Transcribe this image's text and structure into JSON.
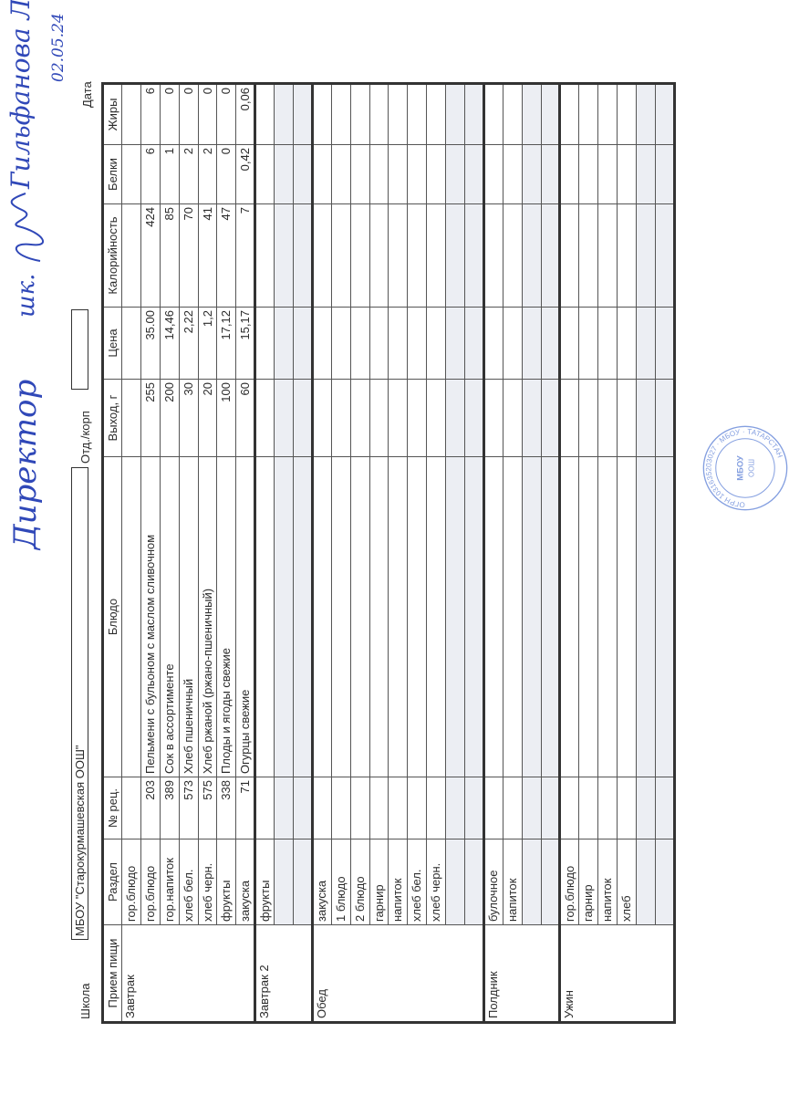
{
  "header": {
    "school_label": "Школа",
    "school_value": "МБОУ \"Старокурмашевская ООШ\"",
    "dept_label": "Отд./корп",
    "dept_value": "",
    "date_label": "Дата",
    "date_value": "02.05.24"
  },
  "columns": [
    "Прием пищи",
    "Раздел",
    "№ рец.",
    "Блюдо",
    "Выход, г",
    "Цена",
    "Калорийность",
    "Белки",
    "Жиры"
  ],
  "meals": [
    {
      "name": "Завтрак",
      "rows": [
        [
          "гор.блюдо",
          "",
          "",
          "",
          "",
          "",
          "",
          ""
        ],
        [
          "гор.блюдо",
          "203",
          "Пельмени с бульоном с маслом сливочном",
          "255",
          "35.00",
          "424",
          "6",
          "6"
        ],
        [
          "гор.напиток",
          "389",
          "Сок в ассортименте",
          "200",
          "14,46",
          "85",
          "1",
          "0"
        ],
        [
          "хлеб бел.",
          "573",
          "Хлеб пшеничный",
          "30",
          "2,22",
          "70",
          "2",
          "0"
        ],
        [
          "хлеб черн.",
          "575",
          "Хлеб ржаной (ржано-пшеничный)",
          "20",
          "1,2",
          "41",
          "2",
          "0"
        ],
        [
          "фрукты",
          "338",
          "Плоды и ягоды свежие",
          "100",
          "17,12",
          "47",
          "0",
          "0"
        ],
        [
          "закуска",
          "71",
          "Огурцы свежие",
          "60",
          "15,17",
          "7",
          "0,42",
          "0,06"
        ]
      ]
    },
    {
      "name": "Завтрак 2",
      "rows": [
        [
          "фрукты",
          "",
          "",
          "",
          "",
          "",
          "",
          ""
        ],
        [
          "",
          "",
          "",
          "",
          "",
          "",
          "",
          ""
        ],
        [
          "",
          "",
          "",
          "",
          "",
          "",
          "",
          ""
        ]
      ]
    },
    {
      "name": "Обед",
      "rows": [
        [
          "закуска",
          "",
          "",
          "",
          "",
          "",
          "",
          ""
        ],
        [
          "1 блюдо",
          "",
          "",
          "",
          "",
          "",
          "",
          ""
        ],
        [
          "2 блюдо",
          "",
          "",
          "",
          "",
          "",
          "",
          ""
        ],
        [
          "гарнир",
          "",
          "",
          "",
          "",
          "",
          "",
          ""
        ],
        [
          "напиток",
          "",
          "",
          "",
          "",
          "",
          "",
          ""
        ],
        [
          "хлеб бел.",
          "",
          "",
          "",
          "",
          "",
          "",
          ""
        ],
        [
          "хлеб черн.",
          "",
          "",
          "",
          "",
          "",
          "",
          ""
        ],
        [
          "",
          "",
          "",
          "",
          "",
          "",
          "",
          ""
        ],
        [
          "",
          "",
          "",
          "",
          "",
          "",
          "",
          ""
        ]
      ]
    },
    {
      "name": "Полдник",
      "rows": [
        [
          "булочное",
          "",
          "",
          "",
          "",
          "",
          "",
          ""
        ],
        [
          "напиток",
          "",
          "",
          "",
          "",
          "",
          "",
          ""
        ],
        [
          "",
          "",
          "",
          "",
          "",
          "",
          "",
          ""
        ],
        [
          "",
          "",
          "",
          "",
          "",
          "",
          "",
          ""
        ]
      ]
    },
    {
      "name": "Ужин",
      "rows": [
        [
          "гор.блюдо",
          "",
          "",
          "",
          "",
          "",
          "",
          ""
        ],
        [
          "гарнир",
          "",
          "",
          "",
          "",
          "",
          "",
          ""
        ],
        [
          "напиток",
          "",
          "",
          "",
          "",
          "",
          "",
          ""
        ],
        [
          "хлеб",
          "",
          "",
          "",
          "",
          "",
          "",
          ""
        ],
        [
          "",
          "",
          "",
          "",
          "",
          "",
          "",
          ""
        ],
        [
          "",
          "",
          "",
          "",
          "",
          "",
          "",
          ""
        ]
      ]
    }
  ],
  "approval": {
    "position": "Директор",
    "position2": "шк.",
    "name": "Гильфанова Л.А."
  },
  "stamp": {
    "center_text": "МБОУ «Старокурмашевская ООШ»",
    "ring_text": "ОГРН 1031635203027"
  },
  "colors": {
    "ink": "#3048b8",
    "stamp": "#5b7fd6",
    "grid": "#333333",
    "shade": "#eceef3"
  }
}
